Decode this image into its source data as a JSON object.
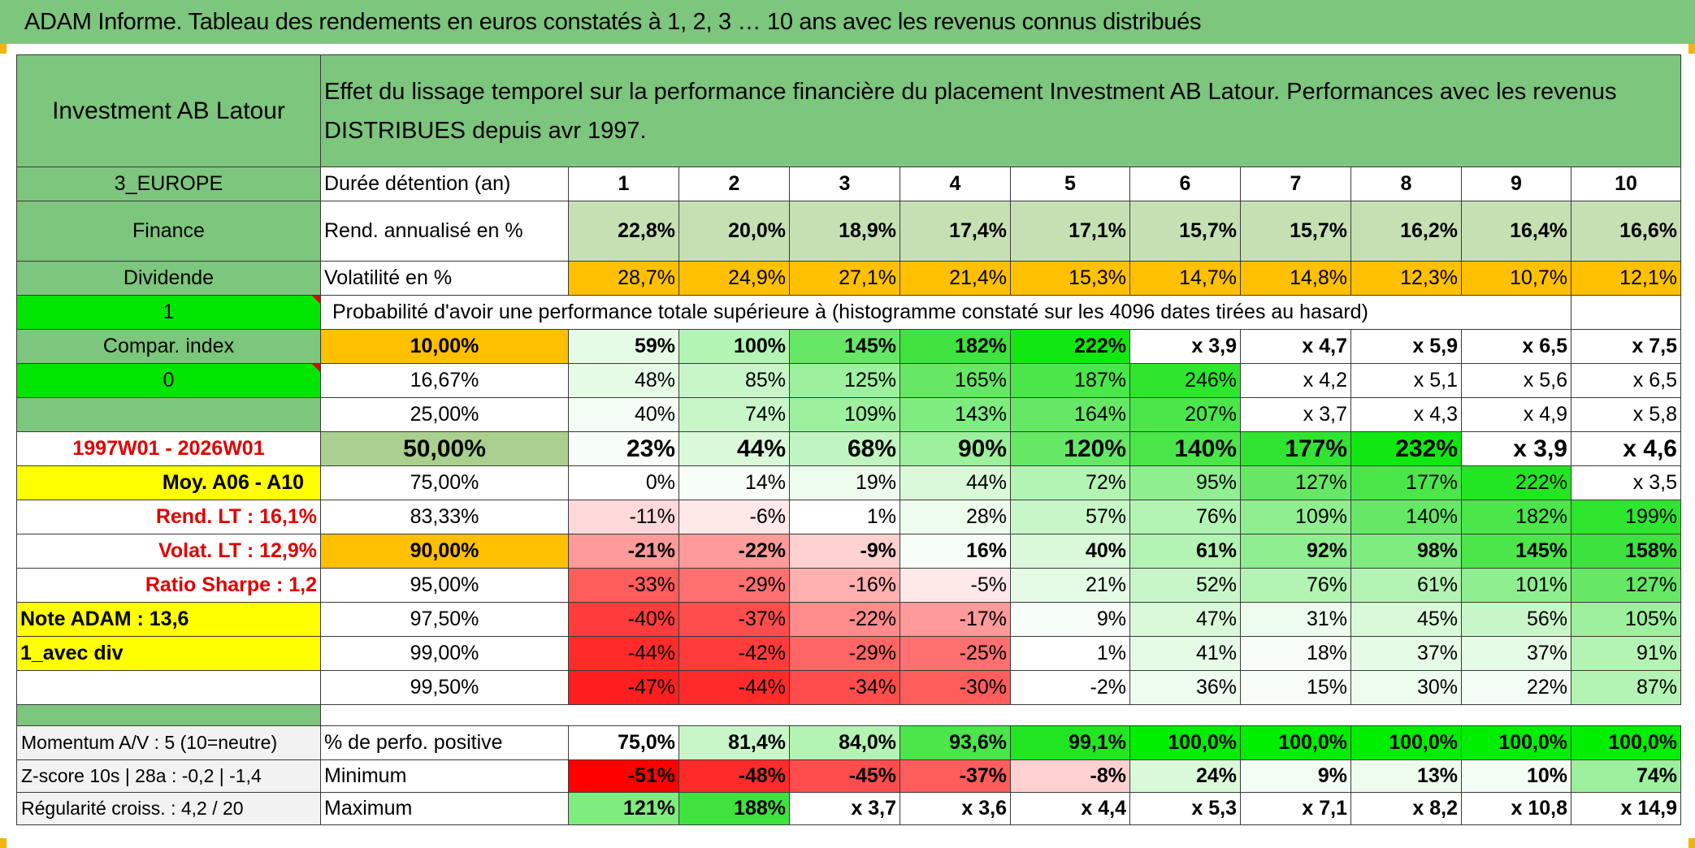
{
  "title": "ADAM Informe. Tableau des rendements en euros constatés à 1, 2, 3 … 10 ans avec les revenus connus distribués",
  "header": {
    "fund_name": "Investment AB Latour",
    "description": "Effet du lissage temporel sur la performance financière du placement Investment AB Latour. Performances avec les revenus DISTRIBUES depuis avr 1997."
  },
  "left_labels": {
    "region": "3_EUROPE",
    "sector": "Finance",
    "type": "Dividende",
    "input1": "1",
    "compar_index": "Compar. index",
    "input0": "0",
    "empty": "",
    "period": "1997W01 - 2026W01",
    "moy": "Moy. A06 - A10",
    "rend_lt": "Rend. LT :    16,1%",
    "volat_lt": "Volat. LT :    12,9%",
    "sharpe": "Ratio Sharpe :    1,2",
    "note": "Note ADAM : 13,6",
    "avec_div": "1_avec div",
    "momentum": "Momentum A/V : 5 (10=neutre)",
    "zscore": "Z-score 10s | 28a : -0,2 | -1,4",
    "regularite": "Régularité croiss. : 4,2 / 20"
  },
  "duration_label": "Durée détention (an)",
  "years": [
    "1",
    "2",
    "3",
    "4",
    "5",
    "6",
    "7",
    "8",
    "9",
    "10"
  ],
  "rend": {
    "label": "Rend. annualisé en %",
    "values": [
      "22,8%",
      "20,0%",
      "18,9%",
      "17,4%",
      "17,1%",
      "15,7%",
      "15,7%",
      "16,2%",
      "16,4%",
      "16,6%"
    ]
  },
  "volat": {
    "label": "Volatilité en %",
    "values": [
      "28,7%",
      "24,9%",
      "27,1%",
      "21,4%",
      "15,3%",
      "14,7%",
      "14,8%",
      "12,3%",
      "10,7%",
      "12,1%"
    ]
  },
  "prob_title": "Probabilité d'avoir une performance totale supérieure à (histogramme constaté sur les 4096 dates tirées au hasard)",
  "prob_rows": [
    {
      "pct": "10,00%",
      "values": [
        "59%",
        "100%",
        "145%",
        "182%",
        "222%",
        "x 3,9",
        "x 4,7",
        "x 5,9",
        "x 6,5",
        "x 7,5"
      ]
    },
    {
      "pct": "16,67%",
      "values": [
        "48%",
        "85%",
        "125%",
        "165%",
        "187%",
        "246%",
        "x 4,2",
        "x 5,1",
        "x 5,6",
        "x 6,5"
      ]
    },
    {
      "pct": "25,00%",
      "values": [
        "40%",
        "74%",
        "109%",
        "143%",
        "164%",
        "207%",
        "x 3,7",
        "x 4,3",
        "x 4,9",
        "x 5,8"
      ]
    },
    {
      "pct": "50,00%",
      "values": [
        "23%",
        "44%",
        "68%",
        "90%",
        "120%",
        "140%",
        "177%",
        "232%",
        "x 3,9",
        "x 4,6"
      ]
    },
    {
      "pct": "75,00%",
      "values": [
        "0%",
        "14%",
        "19%",
        "44%",
        "72%",
        "95%",
        "127%",
        "177%",
        "222%",
        "x 3,5"
      ]
    },
    {
      "pct": "83,33%",
      "values": [
        "-11%",
        "-6%",
        "1%",
        "28%",
        "57%",
        "76%",
        "109%",
        "140%",
        "182%",
        "199%"
      ]
    },
    {
      "pct": "90,00%",
      "values": [
        "-21%",
        "-22%",
        "-9%",
        "16%",
        "40%",
        "61%",
        "92%",
        "98%",
        "145%",
        "158%"
      ]
    },
    {
      "pct": "95,00%",
      "values": [
        "-33%",
        "-29%",
        "-16%",
        "-5%",
        "21%",
        "52%",
        "76%",
        "61%",
        "101%",
        "127%"
      ]
    },
    {
      "pct": "97,50%",
      "values": [
        "-40%",
        "-37%",
        "-22%",
        "-17%",
        "9%",
        "47%",
        "31%",
        "45%",
        "56%",
        "105%"
      ]
    },
    {
      "pct": "99,00%",
      "values": [
        "-44%",
        "-42%",
        "-29%",
        "-25%",
        "1%",
        "41%",
        "18%",
        "37%",
        "37%",
        "91%"
      ]
    },
    {
      "pct": "99,50%",
      "values": [
        "-47%",
        "-44%",
        "-34%",
        "-30%",
        "-2%",
        "36%",
        "15%",
        "30%",
        "22%",
        "87%"
      ]
    }
  ],
  "stats": [
    {
      "label": "% de perfo. positive",
      "values": [
        "75,0%",
        "81,4%",
        "84,0%",
        "93,6%",
        "99,1%",
        "100,0%",
        "100,0%",
        "100,0%",
        "100,0%",
        "100,0%"
      ]
    },
    {
      "label": "Minimum",
      "values": [
        "-51%",
        "-48%",
        "-45%",
        "-37%",
        "-8%",
        "24%",
        "9%",
        "13%",
        "10%",
        "74%"
      ]
    },
    {
      "label": "Maximum",
      "values": [
        "121%",
        "188%",
        "x 3,7",
        "x 3,6",
        "x 4,4",
        "x 5,3",
        "x 7,1",
        "x 8,2",
        "x 10,8",
        "x 14,9"
      ]
    }
  ],
  "colors": {
    "header_green": "#7dc67d",
    "pale_green": "#c6e0b4",
    "orange": "#ffc000",
    "lime": "#00e600",
    "yellow": "#ffff00",
    "red_text": "#e00000",
    "bright_green": "#00ee00",
    "strong_red": "#ff0000"
  }
}
